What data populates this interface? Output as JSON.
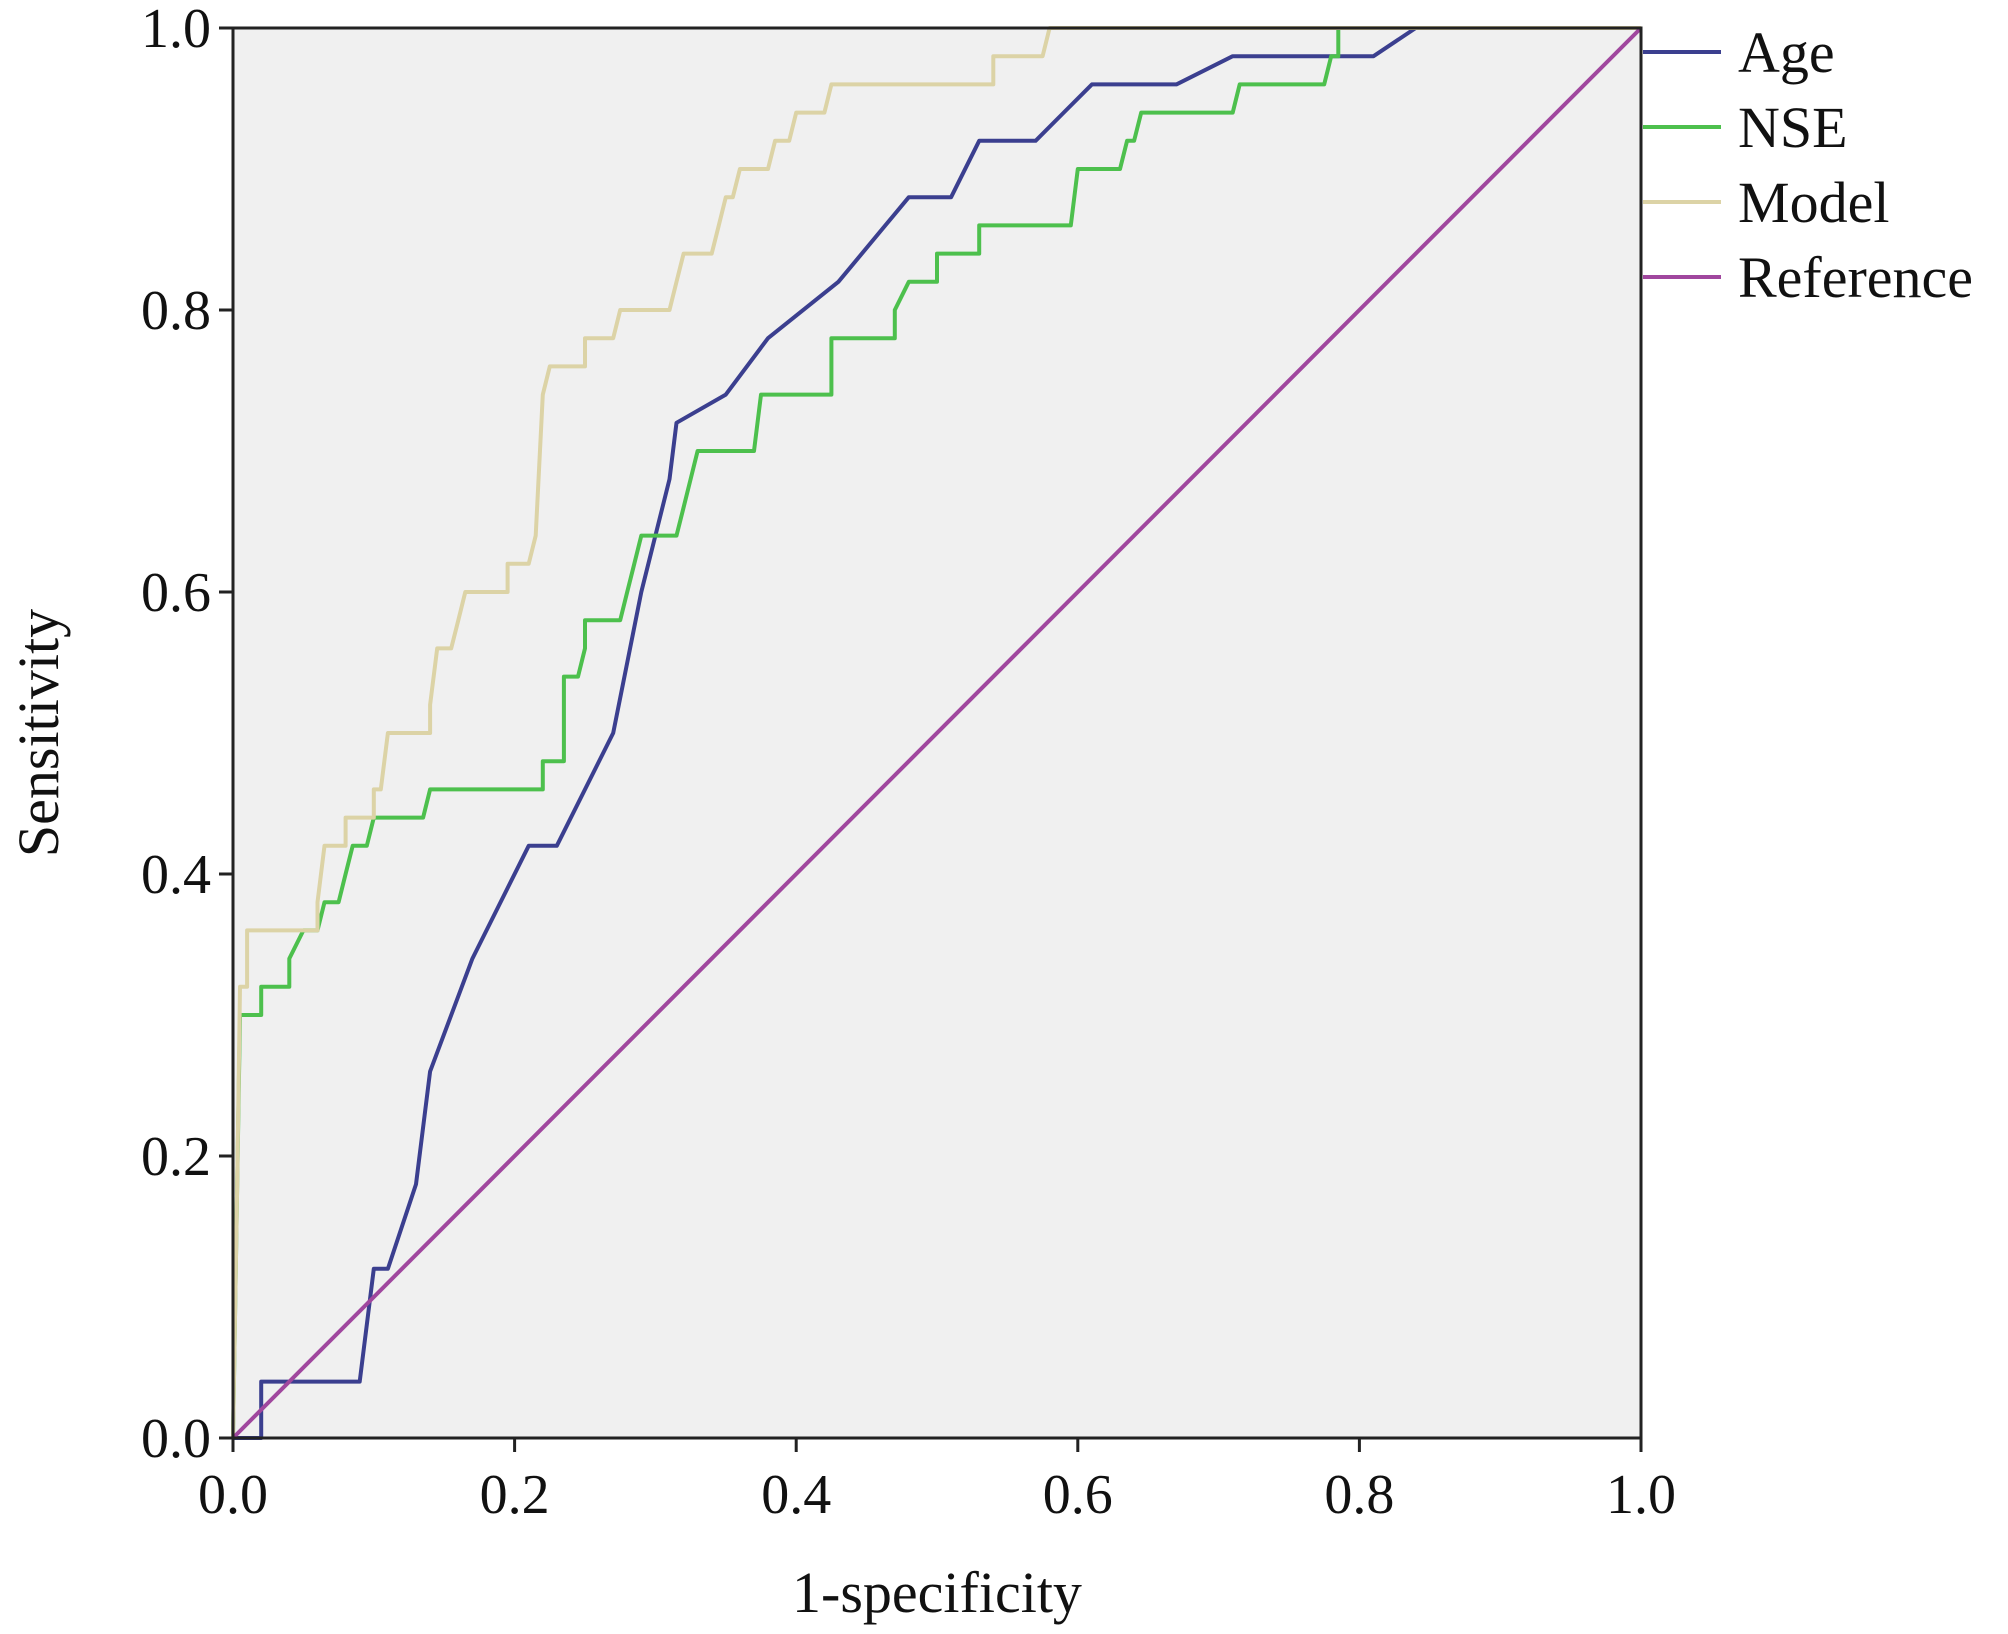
{
  "chart_data": {
    "type": "line",
    "title": "",
    "xlabel": "1-specificity",
    "ylabel": "Sensitivity",
    "xlim": [
      0,
      1
    ],
    "ylim": [
      0,
      1
    ],
    "xticks": [
      "0.0",
      "0.2",
      "0.4",
      "0.6",
      "0.8",
      "1.0"
    ],
    "yticks": [
      "0.0",
      "0.2",
      "0.4",
      "0.6",
      "0.8",
      "1.0"
    ],
    "grid": false,
    "legend_position": "right-top outside",
    "plot_background": "#f0f0f0",
    "series": [
      {
        "name": "Age",
        "color": "#3b3f8f",
        "points": [
          [
            0,
            0
          ],
          [
            0.02,
            0
          ],
          [
            0.02,
            0.04
          ],
          [
            0.09,
            0.04
          ],
          [
            0.1,
            0.12
          ],
          [
            0.11,
            0.12
          ],
          [
            0.13,
            0.18
          ],
          [
            0.14,
            0.26
          ],
          [
            0.17,
            0.34
          ],
          [
            0.21,
            0.42
          ],
          [
            0.23,
            0.42
          ],
          [
            0.27,
            0.5
          ],
          [
            0.29,
            0.6
          ],
          [
            0.31,
            0.68
          ],
          [
            0.315,
            0.72
          ],
          [
            0.35,
            0.74
          ],
          [
            0.38,
            0.78
          ],
          [
            0.43,
            0.82
          ],
          [
            0.48,
            0.88
          ],
          [
            0.51,
            0.88
          ],
          [
            0.53,
            0.92
          ],
          [
            0.57,
            0.92
          ],
          [
            0.59,
            0.94
          ],
          [
            0.61,
            0.96
          ],
          [
            0.67,
            0.96
          ],
          [
            0.71,
            0.98
          ],
          [
            0.81,
            0.98
          ],
          [
            0.84,
            1.0
          ],
          [
            1.0,
            1.0
          ]
        ]
      },
      {
        "name": "NSE",
        "color": "#4dc04d",
        "points": [
          [
            0,
            0
          ],
          [
            0.005,
            0.3
          ],
          [
            0.02,
            0.3
          ],
          [
            0.02,
            0.32
          ],
          [
            0.04,
            0.32
          ],
          [
            0.04,
            0.34
          ],
          [
            0.05,
            0.36
          ],
          [
            0.06,
            0.36
          ],
          [
            0.065,
            0.38
          ],
          [
            0.075,
            0.38
          ],
          [
            0.08,
            0.4
          ],
          [
            0.085,
            0.42
          ],
          [
            0.095,
            0.42
          ],
          [
            0.1,
            0.44
          ],
          [
            0.135,
            0.44
          ],
          [
            0.14,
            0.46
          ],
          [
            0.22,
            0.46
          ],
          [
            0.22,
            0.48
          ],
          [
            0.235,
            0.48
          ],
          [
            0.235,
            0.54
          ],
          [
            0.245,
            0.54
          ],
          [
            0.25,
            0.56
          ],
          [
            0.25,
            0.58
          ],
          [
            0.275,
            0.58
          ],
          [
            0.28,
            0.6
          ],
          [
            0.285,
            0.62
          ],
          [
            0.29,
            0.64
          ],
          [
            0.315,
            0.64
          ],
          [
            0.32,
            0.66
          ],
          [
            0.325,
            0.68
          ],
          [
            0.33,
            0.7
          ],
          [
            0.37,
            0.7
          ],
          [
            0.375,
            0.74
          ],
          [
            0.425,
            0.74
          ],
          [
            0.425,
            0.78
          ],
          [
            0.47,
            0.78
          ],
          [
            0.47,
            0.8
          ],
          [
            0.48,
            0.82
          ],
          [
            0.5,
            0.82
          ],
          [
            0.5,
            0.84
          ],
          [
            0.53,
            0.84
          ],
          [
            0.53,
            0.86
          ],
          [
            0.595,
            0.86
          ],
          [
            0.6,
            0.9
          ],
          [
            0.63,
            0.9
          ],
          [
            0.635,
            0.92
          ],
          [
            0.64,
            0.92
          ],
          [
            0.645,
            0.94
          ],
          [
            0.71,
            0.94
          ],
          [
            0.715,
            0.96
          ],
          [
            0.775,
            0.96
          ],
          [
            0.78,
            0.98
          ],
          [
            0.785,
            0.98
          ],
          [
            0.785,
            1.0
          ],
          [
            1.0,
            1.0
          ]
        ]
      },
      {
        "name": "Model",
        "color": "#dcd3a6",
        "points": [
          [
            0,
            0
          ],
          [
            0.003,
            0.18
          ],
          [
            0.005,
            0.32
          ],
          [
            0.01,
            0.32
          ],
          [
            0.01,
            0.36
          ],
          [
            0.06,
            0.36
          ],
          [
            0.06,
            0.38
          ],
          [
            0.065,
            0.42
          ],
          [
            0.08,
            0.42
          ],
          [
            0.08,
            0.44
          ],
          [
            0.1,
            0.44
          ],
          [
            0.1,
            0.46
          ],
          [
            0.105,
            0.46
          ],
          [
            0.11,
            0.5
          ],
          [
            0.14,
            0.5
          ],
          [
            0.14,
            0.52
          ],
          [
            0.145,
            0.56
          ],
          [
            0.155,
            0.56
          ],
          [
            0.16,
            0.58
          ],
          [
            0.165,
            0.6
          ],
          [
            0.195,
            0.6
          ],
          [
            0.195,
            0.62
          ],
          [
            0.21,
            0.62
          ],
          [
            0.215,
            0.64
          ],
          [
            0.22,
            0.74
          ],
          [
            0.225,
            0.76
          ],
          [
            0.25,
            0.76
          ],
          [
            0.25,
            0.78
          ],
          [
            0.27,
            0.78
          ],
          [
            0.275,
            0.8
          ],
          [
            0.31,
            0.8
          ],
          [
            0.315,
            0.82
          ],
          [
            0.32,
            0.84
          ],
          [
            0.34,
            0.84
          ],
          [
            0.345,
            0.86
          ],
          [
            0.35,
            0.88
          ],
          [
            0.355,
            0.88
          ],
          [
            0.36,
            0.9
          ],
          [
            0.38,
            0.9
          ],
          [
            0.385,
            0.92
          ],
          [
            0.395,
            0.92
          ],
          [
            0.4,
            0.94
          ],
          [
            0.42,
            0.94
          ],
          [
            0.425,
            0.96
          ],
          [
            0.54,
            0.96
          ],
          [
            0.54,
            0.98
          ],
          [
            0.575,
            0.98
          ],
          [
            0.58,
            1.0
          ],
          [
            1.0,
            1.0
          ]
        ]
      },
      {
        "name": "Reference",
        "color": "#a0479e",
        "points": [
          [
            0,
            0
          ],
          [
            1,
            1
          ]
        ]
      }
    ]
  }
}
